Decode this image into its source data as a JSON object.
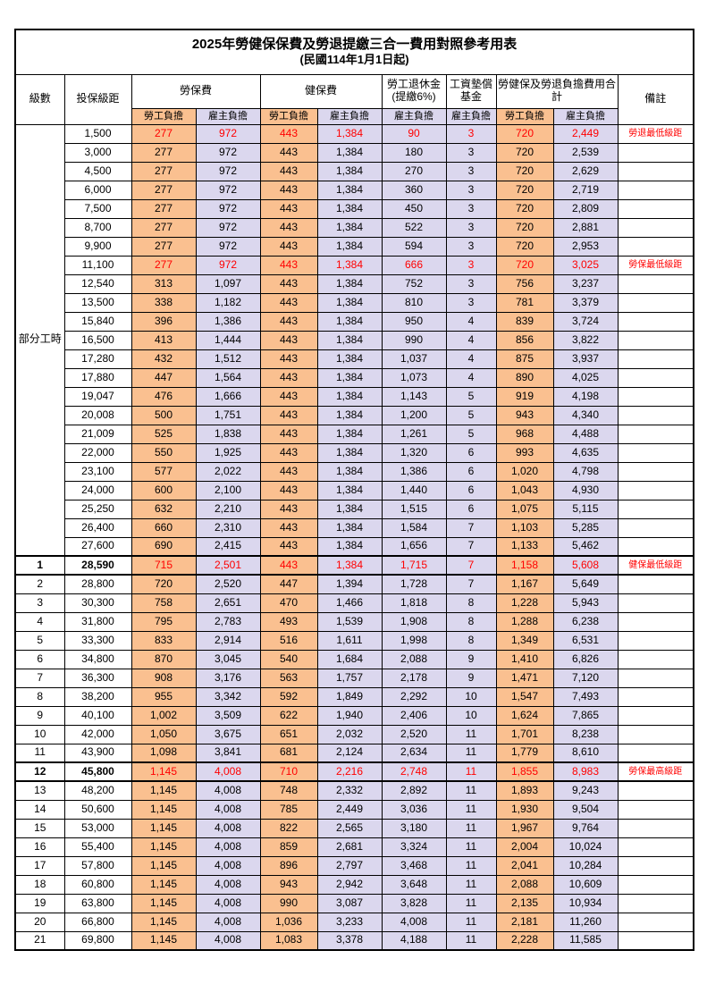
{
  "title": "2025年勞健保保費及勞退提繳三合一費用對照參考用表",
  "subtitle": "(民國114年1月1日起)",
  "columns": {
    "level": "級數",
    "bracket": "投保級距",
    "labor_insurance": "勞保費",
    "health_insurance": "健保費",
    "pension": "勞工退休金(提繳6%)",
    "wage_arrears_fund": "工資墊償基金",
    "total": "勞健保及勞退負擔費用合計",
    "remark": "備註",
    "employee_share": "勞工負擔",
    "employer_share": "雇主負擔"
  },
  "colors": {
    "employee_bg": "#FAC090",
    "employer_bg": "#DBD7EE",
    "highlight": "#FF0000"
  },
  "rows": [
    {
      "level": "部分工時",
      "level_rowspan": 23,
      "bracket": "1,500",
      "values": [
        "277",
        "972",
        "443",
        "1,384",
        "90",
        "3",
        "720",
        "2,449"
      ],
      "remark": "勞退最低級距",
      "red": true
    },
    {
      "bracket": "3,000",
      "values": [
        "277",
        "972",
        "443",
        "1,384",
        "180",
        "3",
        "720",
        "2,539"
      ]
    },
    {
      "bracket": "4,500",
      "values": [
        "277",
        "972",
        "443",
        "1,384",
        "270",
        "3",
        "720",
        "2,629"
      ]
    },
    {
      "bracket": "6,000",
      "values": [
        "277",
        "972",
        "443",
        "1,384",
        "360",
        "3",
        "720",
        "2,719"
      ]
    },
    {
      "bracket": "7,500",
      "values": [
        "277",
        "972",
        "443",
        "1,384",
        "450",
        "3",
        "720",
        "2,809"
      ]
    },
    {
      "bracket": "8,700",
      "values": [
        "277",
        "972",
        "443",
        "1,384",
        "522",
        "3",
        "720",
        "2,881"
      ]
    },
    {
      "bracket": "9,900",
      "values": [
        "277",
        "972",
        "443",
        "1,384",
        "594",
        "3",
        "720",
        "2,953"
      ]
    },
    {
      "bracket": "11,100",
      "values": [
        "277",
        "972",
        "443",
        "1,384",
        "666",
        "3",
        "720",
        "3,025"
      ],
      "remark": "勞保最低級距",
      "red": true
    },
    {
      "bracket": "12,540",
      "values": [
        "313",
        "1,097",
        "443",
        "1,384",
        "752",
        "3",
        "756",
        "3,237"
      ]
    },
    {
      "bracket": "13,500",
      "values": [
        "338",
        "1,182",
        "443",
        "1,384",
        "810",
        "3",
        "781",
        "3,379"
      ]
    },
    {
      "bracket": "15,840",
      "values": [
        "396",
        "1,386",
        "443",
        "1,384",
        "950",
        "4",
        "839",
        "3,724"
      ]
    },
    {
      "bracket": "16,500",
      "values": [
        "413",
        "1,444",
        "443",
        "1,384",
        "990",
        "4",
        "856",
        "3,822"
      ]
    },
    {
      "bracket": "17,280",
      "values": [
        "432",
        "1,512",
        "443",
        "1,384",
        "1,037",
        "4",
        "875",
        "3,937"
      ]
    },
    {
      "bracket": "17,880",
      "values": [
        "447",
        "1,564",
        "443",
        "1,384",
        "1,073",
        "4",
        "890",
        "4,025"
      ]
    },
    {
      "bracket": "19,047",
      "values": [
        "476",
        "1,666",
        "443",
        "1,384",
        "1,143",
        "5",
        "919",
        "4,198"
      ]
    },
    {
      "bracket": "20,008",
      "values": [
        "500",
        "1,751",
        "443",
        "1,384",
        "1,200",
        "5",
        "943",
        "4,340"
      ]
    },
    {
      "bracket": "21,009",
      "values": [
        "525",
        "1,838",
        "443",
        "1,384",
        "1,261",
        "5",
        "968",
        "4,488"
      ]
    },
    {
      "bracket": "22,000",
      "values": [
        "550",
        "1,925",
        "443",
        "1,384",
        "1,320",
        "6",
        "993",
        "4,635"
      ]
    },
    {
      "bracket": "23,100",
      "values": [
        "577",
        "2,022",
        "443",
        "1,384",
        "1,386",
        "6",
        "1,020",
        "4,798"
      ]
    },
    {
      "bracket": "24,000",
      "values": [
        "600",
        "2,100",
        "443",
        "1,384",
        "1,440",
        "6",
        "1,043",
        "4,930"
      ]
    },
    {
      "bracket": "25,250",
      "values": [
        "632",
        "2,210",
        "443",
        "1,384",
        "1,515",
        "6",
        "1,075",
        "5,115"
      ]
    },
    {
      "bracket": "26,400",
      "values": [
        "660",
        "2,310",
        "443",
        "1,384",
        "1,584",
        "7",
        "1,103",
        "5,285"
      ]
    },
    {
      "bracket": "27,600",
      "values": [
        "690",
        "2,415",
        "443",
        "1,384",
        "1,656",
        "7",
        "1,133",
        "5,462"
      ]
    },
    {
      "level": "1",
      "bracket": "28,590",
      "values": [
        "715",
        "2,501",
        "443",
        "1,384",
        "1,715",
        "7",
        "1,158",
        "5,608"
      ],
      "remark": "健保最低級距",
      "red": true,
      "bold": true,
      "section": true
    },
    {
      "level": "2",
      "bracket": "28,800",
      "values": [
        "720",
        "2,520",
        "447",
        "1,394",
        "1,728",
        "7",
        "1,167",
        "5,649"
      ]
    },
    {
      "level": "3",
      "bracket": "30,300",
      "values": [
        "758",
        "2,651",
        "470",
        "1,466",
        "1,818",
        "8",
        "1,228",
        "5,943"
      ]
    },
    {
      "level": "4",
      "bracket": "31,800",
      "values": [
        "795",
        "2,783",
        "493",
        "1,539",
        "1,908",
        "8",
        "1,288",
        "6,238"
      ]
    },
    {
      "level": "5",
      "bracket": "33,300",
      "values": [
        "833",
        "2,914",
        "516",
        "1,611",
        "1,998",
        "8",
        "1,349",
        "6,531"
      ]
    },
    {
      "level": "6",
      "bracket": "34,800",
      "values": [
        "870",
        "3,045",
        "540",
        "1,684",
        "2,088",
        "9",
        "1,410",
        "6,826"
      ]
    },
    {
      "level": "7",
      "bracket": "36,300",
      "values": [
        "908",
        "3,176",
        "563",
        "1,757",
        "2,178",
        "9",
        "1,471",
        "7,120"
      ]
    },
    {
      "level": "8",
      "bracket": "38,200",
      "values": [
        "955",
        "3,342",
        "592",
        "1,849",
        "2,292",
        "10",
        "1,547",
        "7,493"
      ]
    },
    {
      "level": "9",
      "bracket": "40,100",
      "values": [
        "1,002",
        "3,509",
        "622",
        "1,940",
        "2,406",
        "10",
        "1,624",
        "7,865"
      ]
    },
    {
      "level": "10",
      "bracket": "42,000",
      "values": [
        "1,050",
        "3,675",
        "651",
        "2,032",
        "2,520",
        "11",
        "1,701",
        "8,238"
      ]
    },
    {
      "level": "11",
      "bracket": "43,900",
      "values": [
        "1,098",
        "3,841",
        "681",
        "2,124",
        "2,634",
        "11",
        "1,779",
        "8,610"
      ]
    },
    {
      "level": "12",
      "bracket": "45,800",
      "values": [
        "1,145",
        "4,008",
        "710",
        "2,216",
        "2,748",
        "11",
        "1,855",
        "8,983"
      ],
      "remark": "勞保最高級距",
      "red": true,
      "bold": true,
      "section": true
    },
    {
      "level": "13",
      "bracket": "48,200",
      "values": [
        "1,145",
        "4,008",
        "748",
        "2,332",
        "2,892",
        "11",
        "1,893",
        "9,243"
      ]
    },
    {
      "level": "14",
      "bracket": "50,600",
      "values": [
        "1,145",
        "4,008",
        "785",
        "2,449",
        "3,036",
        "11",
        "1,930",
        "9,504"
      ]
    },
    {
      "level": "15",
      "bracket": "53,000",
      "values": [
        "1,145",
        "4,008",
        "822",
        "2,565",
        "3,180",
        "11",
        "1,967",
        "9,764"
      ]
    },
    {
      "level": "16",
      "bracket": "55,400",
      "values": [
        "1,145",
        "4,008",
        "859",
        "2,681",
        "3,324",
        "11",
        "2,004",
        "10,024"
      ]
    },
    {
      "level": "17",
      "bracket": "57,800",
      "values": [
        "1,145",
        "4,008",
        "896",
        "2,797",
        "3,468",
        "11",
        "2,041",
        "10,284"
      ]
    },
    {
      "level": "18",
      "bracket": "60,800",
      "values": [
        "1,145",
        "4,008",
        "943",
        "2,942",
        "3,648",
        "11",
        "2,088",
        "10,609"
      ]
    },
    {
      "level": "19",
      "bracket": "63,800",
      "values": [
        "1,145",
        "4,008",
        "990",
        "3,087",
        "3,828",
        "11",
        "2,135",
        "10,934"
      ]
    },
    {
      "level": "20",
      "bracket": "66,800",
      "values": [
        "1,145",
        "4,008",
        "1,036",
        "3,233",
        "4,008",
        "11",
        "2,181",
        "11,260"
      ]
    },
    {
      "level": "21",
      "bracket": "69,800",
      "values": [
        "1,145",
        "4,008",
        "1,083",
        "3,378",
        "4,188",
        "11",
        "2,228",
        "11,585"
      ]
    }
  ]
}
